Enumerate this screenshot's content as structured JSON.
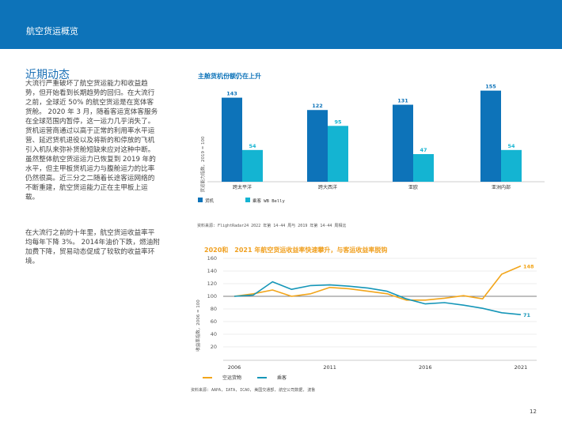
{
  "header": {
    "title": "航空货运概览"
  },
  "section": {
    "title": "近期动态"
  },
  "paragraphs": [
    "大流行严重破坏了航空货运能力和收益趋势，但开始看到长期趋势的回归。在大流行之前，全球近 50% 的航空货运是在宽体客货舱。 2020 年 3 月，随着客运宽体客服务在全球范围内暂停，这一运力几乎消失了。货机运营商通过以高于正常的利用率水平运营、延迟货机退役以及将新的和停放的飞机引入机队来弥补货舱短缺来应对这种中断。虽然整体航空货运运力已恢复到 2019 年的水平，但主甲板货机运力与腹舱运力的比率仍然很高。近三分之二随着长途客运网络的不断重建，航空货运能力正在主甲板上运载。",
    "在大流行之前的十年里，航空货运收益率平均每年下降 3%。 2014年油价下跌，燃油附加费下降，贸易动态促成了较软的收益率环境。"
  ],
  "chart_data": [
    {
      "type": "bar",
      "title": "主舱货机份额仍在上升",
      "ylabel": "货运能力指数，2019 = 100",
      "categories": [
        "跨太平洋",
        "跨大西洋",
        "亚欧",
        "亚洲内部"
      ],
      "series": [
        {
          "name": "货机",
          "color": "#0d73b9",
          "values": [
            143,
            122,
            131,
            155
          ]
        },
        {
          "name": "乘客 WB Belly",
          "color": "#14b4d2",
          "values": [
            54,
            95,
            47,
            54
          ]
        }
      ],
      "legend": "bottom-left",
      "source": "资料来源: FlightRadar24 2022 年第 14-44 周与 2019 年第 14-44 周相比"
    },
    {
      "type": "line",
      "title": "2020和　2021 年航空货运收益率快速攀升，与客运收益率脱钩",
      "ylabel": "收益率指数，2006 = 100",
      "ylim": [
        20,
        160
      ],
      "yticks": [
        20,
        40,
        60,
        80,
        100,
        120,
        140,
        160
      ],
      "xticks": [
        "2006",
        "2011",
        "2016",
        "2021"
      ],
      "x": [
        2006,
        2007,
        2008,
        2009,
        2010,
        2011,
        2012,
        2013,
        2014,
        2015,
        2016,
        2017,
        2018,
        2019,
        2020,
        2021
      ],
      "series": [
        {
          "name": "空运货物",
          "color": "#f2a51a",
          "values": [
            100,
            104,
            110,
            100,
            104,
            114,
            112,
            108,
            104,
            94,
            94,
            97,
            101,
            96,
            135,
            148
          ]
        },
        {
          "name": "乘客",
          "color": "#1596b8",
          "values": [
            100,
            102,
            123,
            111,
            117,
            118,
            116,
            113,
            108,
            96,
            88,
            90,
            86,
            81,
            74,
            71
          ]
        }
      ],
      "labels": {
        "end_cargo": "148",
        "end_passenger": "71"
      },
      "legend": "bottom-left",
      "source": "资料来源: AAPA, IATA, ICAO, 美国交通部, 航空公司数据, 波鲁"
    }
  ],
  "page": {
    "number": "12"
  }
}
